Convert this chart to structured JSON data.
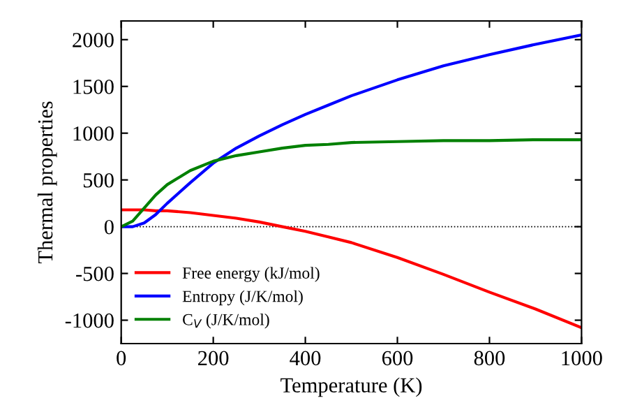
{
  "chart_data": {
    "type": "line",
    "xlabel": "Temperature (K)",
    "ylabel": "Thermal properties",
    "x": [
      0,
      25,
      50,
      75,
      100,
      150,
      200,
      250,
      300,
      350,
      400,
      450,
      500,
      600,
      700,
      800,
      900,
      1000
    ],
    "series": [
      {
        "name": "Free energy (kJ/mol)",
        "color": "#ff0000",
        "values": [
          180,
          180,
          180,
          170,
          170,
          150,
          120,
          90,
          50,
          0,
          -50,
          -110,
          -170,
          -330,
          -510,
          -700,
          -880,
          -1080
        ]
      },
      {
        "name": "Entropy (J/K/mol)",
        "color": "#0000ff",
        "values": [
          0,
          0,
          40,
          130,
          250,
          470,
          680,
          840,
          970,
          1090,
          1200,
          1300,
          1400,
          1570,
          1720,
          1840,
          1950,
          2050
        ]
      },
      {
        "name": "C$_{V}$ (J/K/mol)",
        "color": "#008000",
        "values": [
          0,
          60,
          200,
          340,
          450,
          600,
          700,
          760,
          800,
          840,
          870,
          880,
          900,
          910,
          920,
          920,
          930,
          930
        ]
      }
    ],
    "xlim": [
      0,
      1000
    ],
    "ylim": [
      -1250,
      2200
    ],
    "xticks": [
      0,
      200,
      400,
      600,
      800,
      1000
    ],
    "yticks": [
      -1000,
      -500,
      0,
      500,
      1000,
      1500,
      2000
    ],
    "ref_lines": [
      {
        "axis": "y",
        "value": 0,
        "color": "#000000",
        "line_style": "dotted"
      }
    ],
    "legend": "bottom left",
    "grid": false
  }
}
